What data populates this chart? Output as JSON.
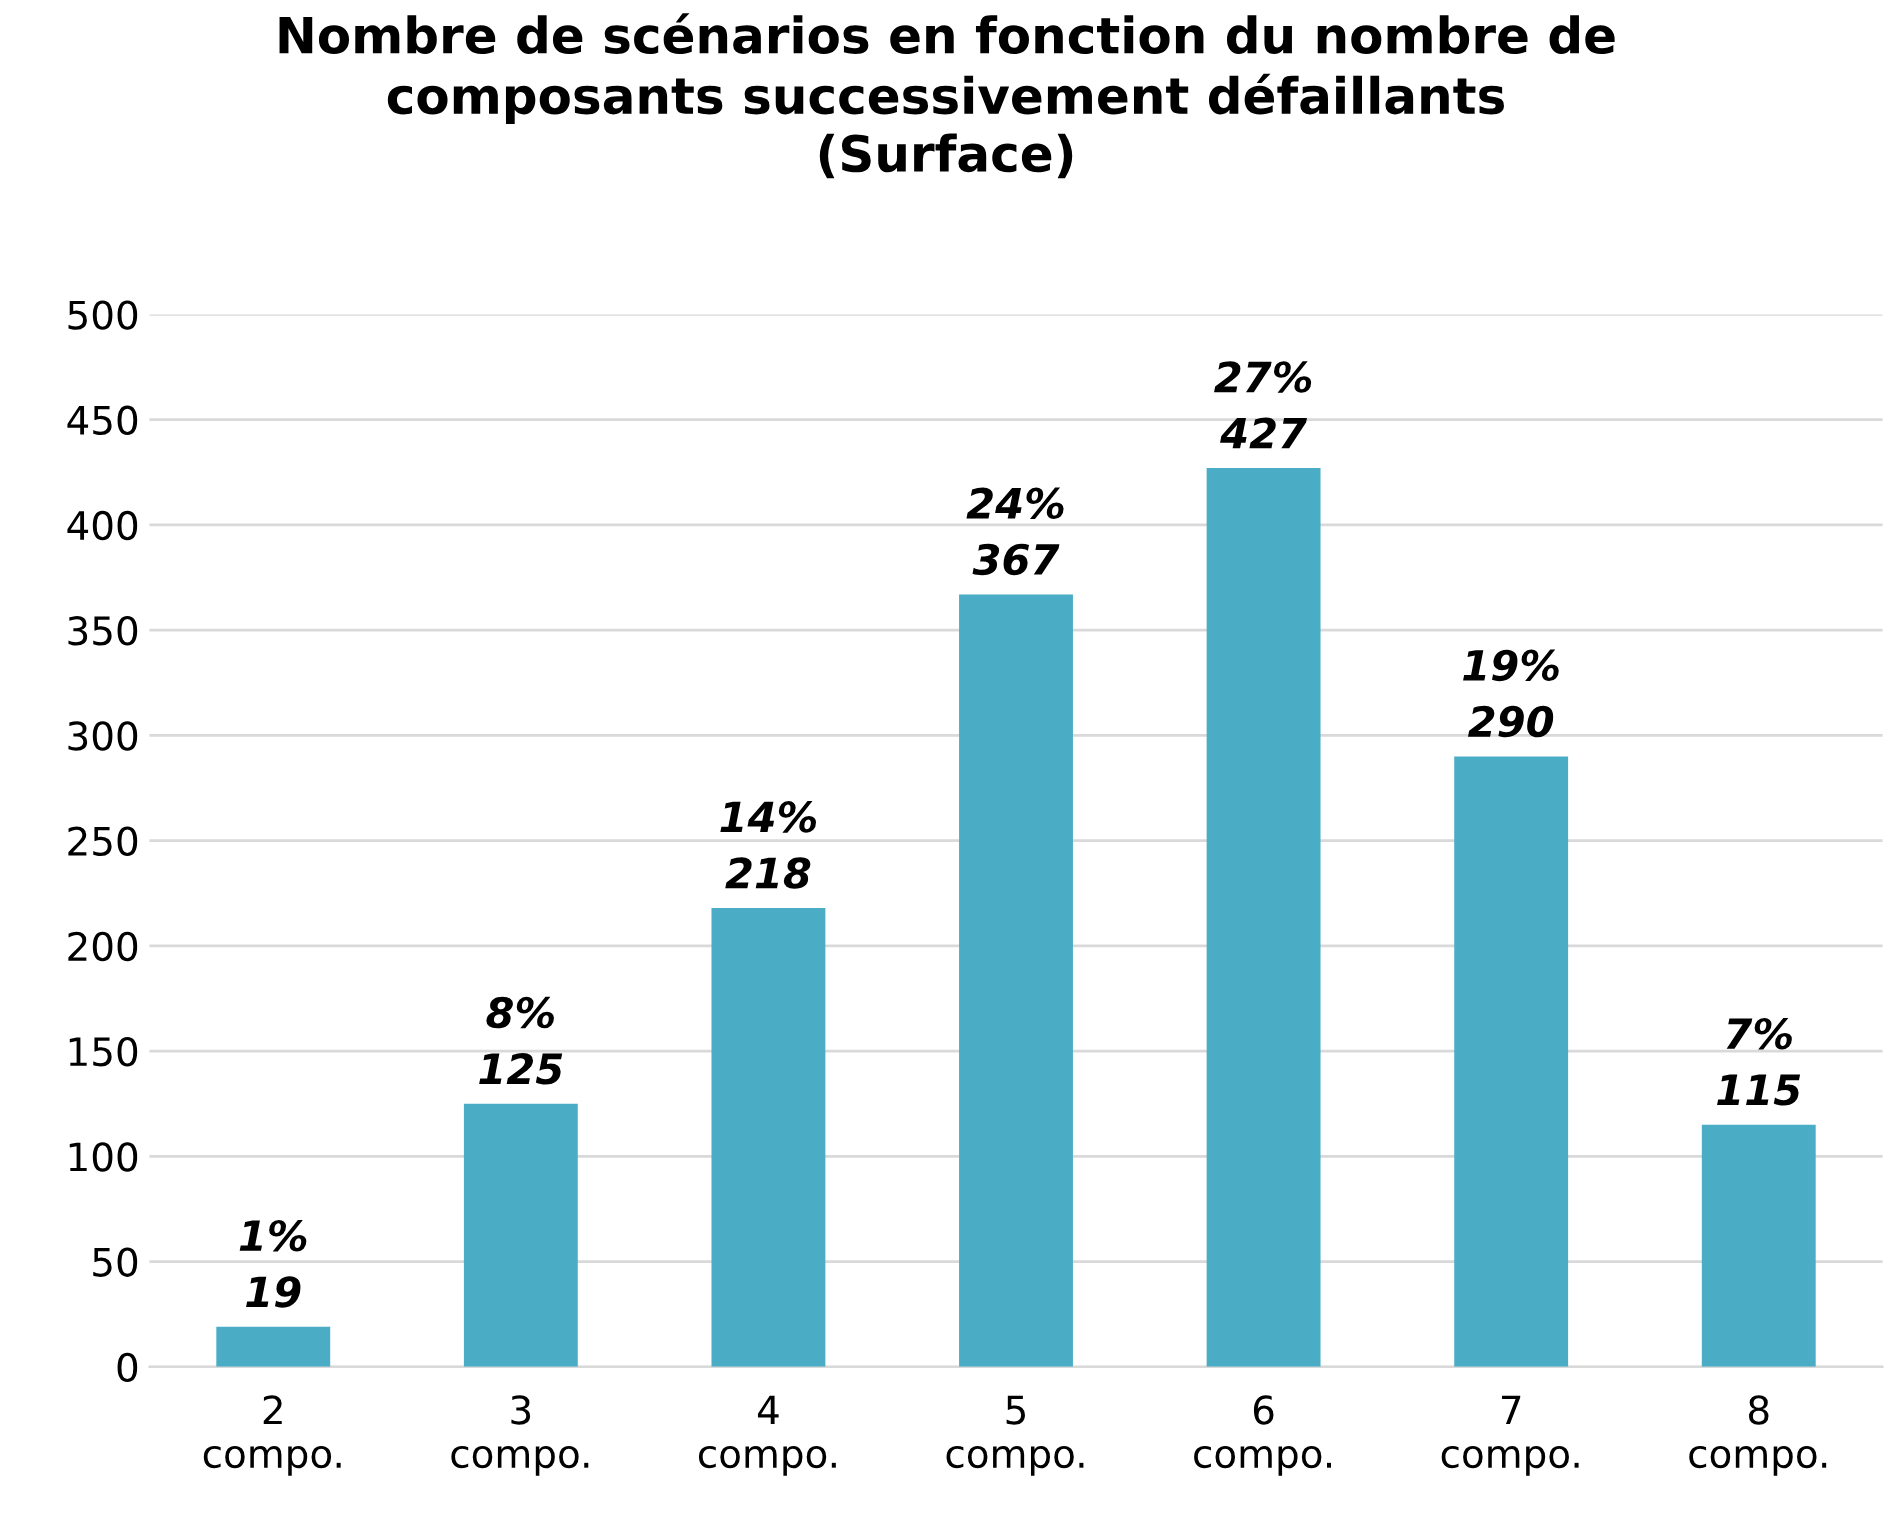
{
  "chart_data": {
    "type": "bar",
    "title": "Nombre de scénarios en fonction du nombre de\ncomposants successivement défaillants\n(Surface)",
    "categories": [
      "2\ncompo.",
      "3\ncompo.",
      "4\ncompo.",
      "5\ncompo.",
      "6\ncompo.",
      "7\ncompo.",
      "8\ncompo."
    ],
    "values": [
      19,
      125,
      218,
      367,
      427,
      290,
      115
    ],
    "value_labels": [
      "1%\n19",
      "8%\n125",
      "14%\n218",
      "24%\n367",
      "27%\n427",
      "19%\n290",
      "7%\n115"
    ],
    "color": "#4bacc6",
    "ylim": [
      0,
      500
    ],
    "yticks": [
      0,
      50,
      100,
      150,
      200,
      250,
      300,
      350,
      400,
      450,
      500
    ],
    "grid": "y",
    "legend": false
  }
}
